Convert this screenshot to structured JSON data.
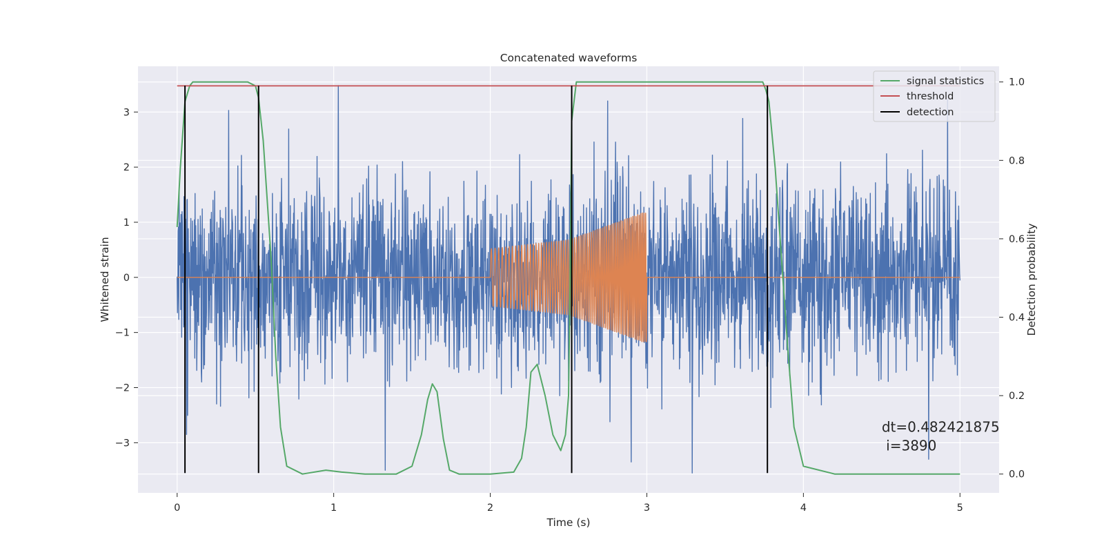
{
  "figure": {
    "background": "#ffffff",
    "axes_background": "#eaeaf2",
    "grid_color": "#ffffff"
  },
  "chart_data": {
    "type": "line",
    "title": "Concatenated waveforms",
    "xlabel": "Time (s)",
    "ylabel": "Whitened strain",
    "ylabel_right": "Detection probability",
    "xlim": [
      -0.25,
      5.25
    ],
    "ylim": [
      -3.91,
      3.83
    ],
    "ylim_right": [
      -0.048,
      1.04
    ],
    "xticks": [
      0,
      1,
      2,
      3,
      4,
      5
    ],
    "xtick_labels": [
      "0",
      "1",
      "2",
      "3",
      "4",
      "5"
    ],
    "yticks": [
      -3,
      -2,
      -1,
      0,
      1,
      2,
      3
    ],
    "ytick_labels": [
      "−3",
      "−2",
      "−1",
      "0",
      "1",
      "2",
      "3"
    ],
    "yticks_right": [
      0.0,
      0.2,
      0.4,
      0.6,
      0.8,
      1.0
    ],
    "ytick_labels_right": [
      "0.0",
      "0.2",
      "0.4",
      "0.6",
      "0.8",
      "1.0"
    ],
    "grid": true,
    "legend_position": "top-right",
    "annotation": {
      "line1": "dt=0.482421875",
      "line2": " i=3890",
      "x": 4.5,
      "y": -2.9
    },
    "series": [
      {
        "name": "",
        "kind": "noise",
        "axis": "left",
        "color": "#4c72b0",
        "x_range": [
          0,
          5
        ],
        "amplitude_range": [
          -3.6,
          3.5
        ],
        "spike_peaks": [
          {
            "x": 1.03,
            "y": 3.48
          },
          {
            "x": 0.33,
            "y": 3.03
          },
          {
            "x": 2.75,
            "y": 3.2
          },
          {
            "x": 4.92,
            "y": 3.22
          },
          {
            "x": 3.29,
            "y": -3.55
          },
          {
            "x": 1.33,
            "y": -3.5
          },
          {
            "x": 4.8,
            "y": -3.3
          },
          {
            "x": 2.9,
            "y": -3.35
          },
          {
            "x": 0.06,
            "y": -2.85
          }
        ]
      },
      {
        "name": "",
        "kind": "chirp",
        "axis": "left",
        "color": "#dd8452",
        "x_range": [
          2,
          3
        ],
        "envelope": [
          [
            2.0,
            0.52
          ],
          [
            2.5,
            0.68
          ],
          [
            3.0,
            1.2
          ]
        ],
        "baseline": 0
      },
      {
        "name": "signal statistics",
        "axis": "right",
        "color": "#55a868",
        "x": [
          0,
          0.02,
          0.05,
          0.08,
          0.1,
          0.15,
          0.3,
          0.45,
          0.5,
          0.52,
          0.55,
          0.6,
          0.63,
          0.66,
          0.7,
          0.8,
          0.95,
          1.05,
          1.2,
          1.4,
          1.5,
          1.56,
          1.6,
          1.63,
          1.66,
          1.7,
          1.74,
          1.8,
          2.0,
          2.15,
          2.2,
          2.23,
          2.26,
          2.3,
          2.35,
          2.4,
          2.45,
          2.48,
          2.5,
          2.51,
          2.52,
          2.55,
          3.6,
          3.74,
          3.76,
          3.78,
          3.82,
          3.86,
          3.9,
          3.94,
          4.0,
          4.2,
          5.0
        ],
        "y": [
          0.63,
          0.78,
          0.95,
          0.99,
          1.0,
          1.0,
          1.0,
          1.0,
          0.99,
          0.96,
          0.85,
          0.55,
          0.3,
          0.12,
          0.02,
          0.0,
          0.01,
          0.005,
          0.0,
          0.0,
          0.02,
          0.1,
          0.19,
          0.23,
          0.21,
          0.09,
          0.01,
          0.0,
          0.0,
          0.005,
          0.04,
          0.12,
          0.26,
          0.28,
          0.2,
          0.1,
          0.06,
          0.1,
          0.2,
          0.5,
          0.9,
          1.0,
          1.0,
          1.0,
          0.98,
          0.95,
          0.78,
          0.55,
          0.32,
          0.12,
          0.02,
          0.0,
          0.0
        ]
      },
      {
        "name": "threshold",
        "axis": "right",
        "color": "#c44e52",
        "x": [
          0,
          5
        ],
        "y": [
          0.99,
          0.99
        ]
      },
      {
        "name": "detection",
        "axis": "left",
        "color": "#000000",
        "type": "vlines",
        "x": [
          0.05,
          0.52,
          2.52,
          3.77
        ],
        "ymin": -3.55,
        "ymax": 3.48
      }
    ]
  }
}
